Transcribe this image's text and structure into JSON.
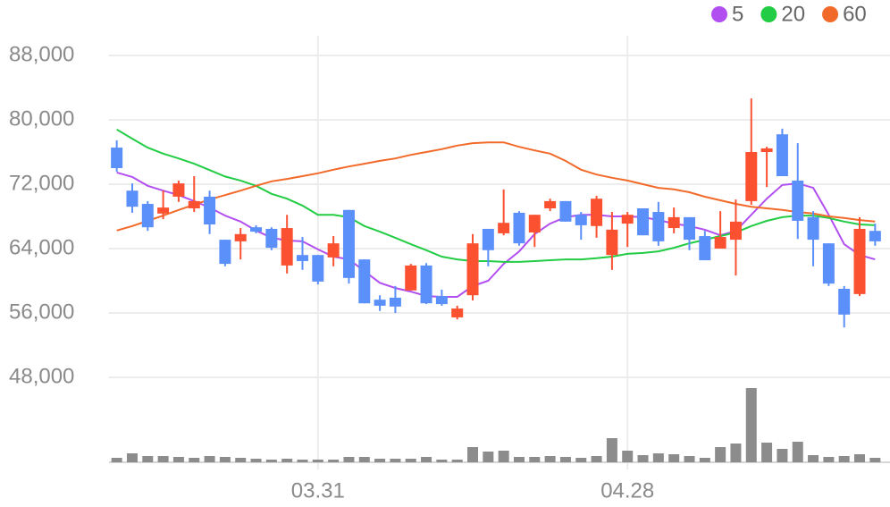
{
  "chart_data": {
    "type": "candlestick",
    "categories": [
      null,
      null,
      null,
      null,
      null,
      null,
      null,
      null,
      null,
      null,
      null,
      null,
      null,
      "03.31",
      null,
      null,
      null,
      null,
      null,
      null,
      null,
      null,
      null,
      null,
      null,
      null,
      null,
      null,
      null,
      null,
      null,
      null,
      null,
      "04.28",
      null,
      null,
      null,
      null,
      null,
      null,
      null,
      null,
      null,
      null,
      null,
      null,
      null,
      null,
      null,
      null
    ],
    "open": [
      76550,
      71200,
      69550,
      68350,
      70450,
      69000,
      70450,
      65100,
      64900,
      66650,
      66450,
      61900,
      63200,
      63200,
      62900,
      68800,
      62650,
      57650,
      57900,
      58800,
      61900,
      58100,
      55450,
      58200,
      66450,
      65900,
      68450,
      66000,
      69000,
      69900,
      68200,
      66800,
      63200,
      67100,
      69000,
      68550,
      66550,
      67900,
      65550,
      64000,
      65100,
      69900,
      76000,
      78200,
      72450,
      67900,
      64650,
      59000,
      58350,
      66200
    ],
    "high": [
      77450,
      72100,
      69900,
      71200,
      72450,
      73000,
      71200,
      65100,
      66550,
      66900,
      66650,
      68200,
      65450,
      63200,
      65550,
      68800,
      62650,
      58200,
      59350,
      62100,
      62200,
      58900,
      56900,
      65800,
      66450,
      71350,
      68650,
      68200,
      70200,
      69900,
      68550,
      70550,
      68550,
      68550,
      69000,
      69800,
      69100,
      67900,
      66200,
      68650,
      70100,
      82650,
      76650,
      78900,
      77100,
      68650,
      64650,
      59350,
      67900,
      67100
    ],
    "low": [
      73550,
      68450,
      66200,
      67650,
      69800,
      68550,
      65800,
      61800,
      62650,
      65900,
      63800,
      60900,
      61350,
      59550,
      61800,
      59650,
      57200,
      56250,
      56000,
      58800,
      57100,
      56900,
      55200,
      57550,
      61800,
      65650,
      64350,
      64200,
      68650,
      67350,
      65100,
      65350,
      61350,
      64200,
      65650,
      64350,
      65900,
      63800,
      62550,
      64000,
      60650,
      69450,
      71650,
      73000,
      65200,
      61800,
      59350,
      54200,
      58100,
      64350
    ],
    "close": [
      74000,
      69200,
      66650,
      69100,
      72100,
      69900,
      67000,
      62100,
      65800,
      66100,
      64100,
      66550,
      62450,
      59900,
      64650,
      60350,
      57200,
      56900,
      56800,
      61900,
      57200,
      57100,
      56550,
      64650,
      63800,
      67200,
      64650,
      68200,
      69900,
      67350,
      66900,
      70200,
      66350,
      68200,
      65650,
      64900,
      67900,
      65100,
      62550,
      65450,
      67350,
      76000,
      76450,
      73000,
      67450,
      65100,
      59650,
      55800,
      66450,
      64900
    ],
    "up_color": "#fb5131",
    "down_color": "#5b8ff9",
    "volume": [
      5,
      10,
      7,
      7,
      6,
      5,
      7,
      6,
      5,
      4,
      3,
      4,
      3,
      3,
      3,
      6,
      6,
      4,
      4,
      4,
      6,
      3,
      3,
      17,
      12,
      13,
      6,
      6,
      7,
      6,
      5,
      7,
      27,
      13,
      8,
      10,
      9,
      7,
      5,
      17,
      21,
      83,
      22,
      15,
      23,
      8,
      6,
      7,
      9,
      5
    ],
    "volume_color": "#8c8c8c",
    "series": [
      {
        "name": "5",
        "color": "#b24ff0",
        "values": [
          73450,
          72900,
          71800,
          71200,
          70650,
          69900,
          69100,
          68100,
          67350,
          66250,
          65350,
          65000,
          64900,
          63900,
          63000,
          62650,
          61200,
          59750,
          59100,
          58650,
          58100,
          58000,
          58000,
          59350,
          60000,
          62100,
          63650,
          65800,
          67100,
          67900,
          68200,
          68200,
          68000,
          68000,
          67900,
          67550,
          67100,
          66800,
          66350,
          65650,
          66200,
          68200,
          70200,
          71900,
          72100,
          71550,
          68200,
          64550,
          63200,
          62650
        ]
      },
      {
        "name": "20",
        "color": "#22cc44",
        "values": [
          78800,
          77650,
          76550,
          75800,
          75200,
          74550,
          73750,
          72950,
          72450,
          71800,
          70800,
          70200,
          69350,
          68200,
          68200,
          67900,
          66800,
          66100,
          65350,
          64550,
          63800,
          63000,
          62650,
          62450,
          62450,
          62350,
          62350,
          62450,
          62550,
          62650,
          62650,
          62800,
          63000,
          63350,
          63450,
          63650,
          64100,
          64650,
          65100,
          65550,
          66000,
          66800,
          67450,
          67900,
          68100,
          68100,
          67800,
          67350,
          67000,
          66900
        ]
      },
      {
        "name": "60",
        "color": "#f26a2a",
        "values": [
          66250,
          66800,
          67450,
          68100,
          68800,
          69450,
          70100,
          70650,
          71200,
          71800,
          72350,
          72650,
          73000,
          73350,
          73800,
          74200,
          74550,
          74900,
          75200,
          75650,
          76000,
          76350,
          76800,
          77100,
          77200,
          77200,
          76650,
          76200,
          75800,
          74900,
          73800,
          73200,
          72800,
          72450,
          72000,
          71550,
          71350,
          71000,
          70450,
          70000,
          69550,
          69200,
          69000,
          68800,
          68550,
          68350,
          68000,
          67800,
          67550,
          67350
        ]
      }
    ],
    "ylim": [
      46000,
      90000
    ],
    "yticks": [
      {
        "value": 88000,
        "label": "88,000"
      },
      {
        "value": 80000,
        "label": "80,000"
      },
      {
        "value": 72000,
        "label": "72,000"
      },
      {
        "value": 64000,
        "label": "64,000"
      },
      {
        "value": 56000,
        "label": "56,000"
      },
      {
        "value": 48000,
        "label": "48,000"
      }
    ],
    "grid": true
  }
}
